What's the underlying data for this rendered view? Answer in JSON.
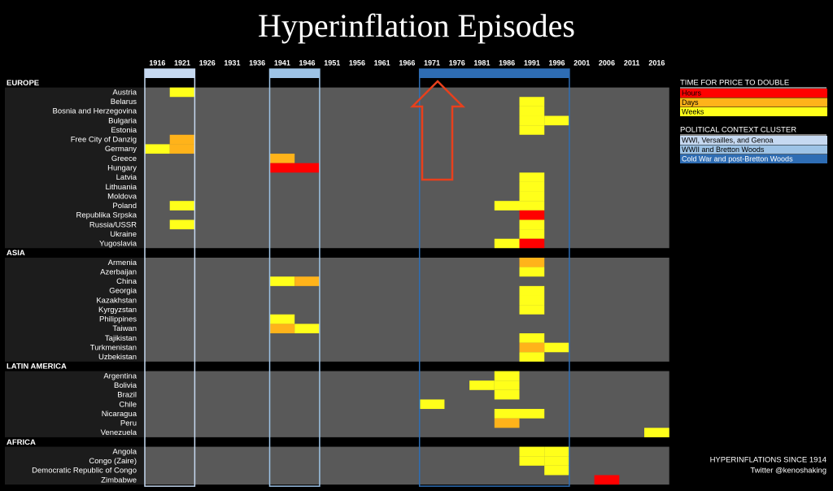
{
  "chart_data": {
    "type": "heatmap",
    "title": "Hyperinflation Episodes",
    "x": [
      "1916",
      "1921",
      "1926",
      "1931",
      "1936",
      "1941",
      "1946",
      "1951",
      "1956",
      "1961",
      "1966",
      "1971",
      "1976",
      "1981",
      "1986",
      "1991",
      "1996",
      "2001",
      "2006",
      "2011",
      "2016"
    ],
    "speed_title": "TIME FOR PRICE TO DOUBLE",
    "speeds": [
      {
        "name": "Hours",
        "color": "#ff0000"
      },
      {
        "name": "Days",
        "color": "#ffb31a"
      },
      {
        "name": "Weeks",
        "color": "#ffff1a"
      }
    ],
    "cluster_title": "POLITICAL CONTEXT CLUSTER",
    "clusters": [
      {
        "name": "WWI, Versailles, and Genoa",
        "color": "#c6d9f1",
        "from": "1916",
        "to": "1921"
      },
      {
        "name": "WWII and Bretton Woods",
        "color": "#9dc3e6",
        "from": "1941",
        "to": "1946"
      },
      {
        "name": "Cold War and post-Bretton Woods",
        "color": "#2e6db4",
        "from": "1971",
        "to": "1996"
      }
    ],
    "regions": [
      {
        "name": "EUROPE",
        "countries": [
          {
            "name": "Austria",
            "episodes": [
              {
                "year": "1921",
                "speed": "Weeks"
              }
            ]
          },
          {
            "name": "Belarus",
            "episodes": [
              {
                "year": "1991",
                "speed": "Weeks"
              }
            ]
          },
          {
            "name": "Bosnia and Herzegovina",
            "episodes": [
              {
                "year": "1991",
                "speed": "Weeks"
              }
            ]
          },
          {
            "name": "Bulgaria",
            "episodes": [
              {
                "year": "1991",
                "speed": "Weeks"
              },
              {
                "year": "1996",
                "speed": "Weeks"
              }
            ]
          },
          {
            "name": "Estonia",
            "episodes": [
              {
                "year": "1991",
                "speed": "Weeks"
              }
            ]
          },
          {
            "name": "Free City of Danzig",
            "episodes": [
              {
                "year": "1921",
                "speed": "Days"
              }
            ]
          },
          {
            "name": "Germany",
            "episodes": [
              {
                "year": "1916",
                "speed": "Weeks"
              },
              {
                "year": "1921",
                "speed": "Days"
              }
            ]
          },
          {
            "name": "Greece",
            "episodes": [
              {
                "year": "1941",
                "speed": "Days"
              }
            ]
          },
          {
            "name": "Hungary",
            "episodes": [
              {
                "year": "1941",
                "speed": "Hours"
              },
              {
                "year": "1946",
                "speed": "Hours"
              }
            ]
          },
          {
            "name": "Latvia",
            "episodes": [
              {
                "year": "1991",
                "speed": "Weeks"
              }
            ]
          },
          {
            "name": "Lithuania",
            "episodes": [
              {
                "year": "1991",
                "speed": "Weeks"
              }
            ]
          },
          {
            "name": "Moldova",
            "episodes": [
              {
                "year": "1991",
                "speed": "Weeks"
              }
            ]
          },
          {
            "name": "Poland",
            "episodes": [
              {
                "year": "1921",
                "speed": "Weeks"
              },
              {
                "year": "1986",
                "speed": "Weeks"
              },
              {
                "year": "1991",
                "speed": "Weeks"
              }
            ]
          },
          {
            "name": "Republika Srpska",
            "episodes": [
              {
                "year": "1991",
                "speed": "Hours"
              }
            ]
          },
          {
            "name": "Russia/USSR",
            "episodes": [
              {
                "year": "1921",
                "speed": "Weeks"
              },
              {
                "year": "1991",
                "speed": "Weeks"
              }
            ]
          },
          {
            "name": "Ukraine",
            "episodes": [
              {
                "year": "1991",
                "speed": "Weeks"
              }
            ]
          },
          {
            "name": "Yugoslavia",
            "episodes": [
              {
                "year": "1986",
                "speed": "Weeks"
              },
              {
                "year": "1991",
                "speed": "Hours"
              }
            ]
          }
        ]
      },
      {
        "name": "ASIA",
        "countries": [
          {
            "name": "Armenia",
            "episodes": [
              {
                "year": "1991",
                "speed": "Days"
              }
            ]
          },
          {
            "name": "Azerbaijan",
            "episodes": [
              {
                "year": "1991",
                "speed": "Weeks"
              }
            ]
          },
          {
            "name": "China",
            "episodes": [
              {
                "year": "1941",
                "speed": "Weeks"
              },
              {
                "year": "1946",
                "speed": "Days"
              }
            ]
          },
          {
            "name": "Georgia",
            "episodes": [
              {
                "year": "1991",
                "speed": "Weeks"
              }
            ]
          },
          {
            "name": "Kazakhstan",
            "episodes": [
              {
                "year": "1991",
                "speed": "Weeks"
              }
            ]
          },
          {
            "name": "Kyrgyzstan",
            "episodes": [
              {
                "year": "1991",
                "speed": "Weeks"
              }
            ]
          },
          {
            "name": "Philippines",
            "episodes": [
              {
                "year": "1941",
                "speed": "Weeks"
              }
            ]
          },
          {
            "name": "Taiwan",
            "episodes": [
              {
                "year": "1941",
                "speed": "Days"
              },
              {
                "year": "1946",
                "speed": "Weeks"
              }
            ]
          },
          {
            "name": "Tajikistan",
            "episodes": [
              {
                "year": "1991",
                "speed": "Weeks"
              }
            ]
          },
          {
            "name": "Turkmenistan",
            "episodes": [
              {
                "year": "1991",
                "speed": "Days"
              },
              {
                "year": "1996",
                "speed": "Weeks"
              }
            ]
          },
          {
            "name": "Uzbekistan",
            "episodes": [
              {
                "year": "1991",
                "speed": "Weeks"
              }
            ]
          }
        ]
      },
      {
        "name": "LATIN AMERICA",
        "countries": [
          {
            "name": "Argentina",
            "episodes": [
              {
                "year": "1986",
                "speed": "Weeks"
              }
            ]
          },
          {
            "name": "Bolivia",
            "episodes": [
              {
                "year": "1981",
                "speed": "Weeks"
              },
              {
                "year": "1986",
                "speed": "Weeks"
              }
            ]
          },
          {
            "name": "Brazil",
            "episodes": [
              {
                "year": "1986",
                "speed": "Weeks"
              }
            ]
          },
          {
            "name": "Chile",
            "episodes": [
              {
                "year": "1971",
                "speed": "Weeks"
              }
            ]
          },
          {
            "name": "Nicaragua",
            "episodes": [
              {
                "year": "1986",
                "speed": "Weeks"
              },
              {
                "year": "1991",
                "speed": "Weeks"
              }
            ]
          },
          {
            "name": "Peru",
            "episodes": [
              {
                "year": "1986",
                "speed": "Days"
              }
            ]
          },
          {
            "name": "Venezuela",
            "episodes": [
              {
                "year": "2016",
                "speed": "Weeks"
              }
            ]
          }
        ]
      },
      {
        "name": "AFRICA",
        "countries": [
          {
            "name": "Angola",
            "episodes": [
              {
                "year": "1991",
                "speed": "Weeks"
              },
              {
                "year": "1996",
                "speed": "Weeks"
              }
            ]
          },
          {
            "name": "Congo (Zaire)",
            "episodes": [
              {
                "year": "1991",
                "speed": "Weeks"
              },
              {
                "year": "1996",
                "speed": "Weeks"
              }
            ]
          },
          {
            "name": "Democratic Republic of Congo",
            "episodes": [
              {
                "year": "1996",
                "speed": "Weeks"
              }
            ]
          },
          {
            "name": "Zimbabwe",
            "episodes": [
              {
                "year": "2006",
                "speed": "Hours"
              }
            ]
          }
        ]
      }
    ],
    "footer": "HYPERINFLATIONS SINCE 1914",
    "credit": "Twitter @kenoshaking"
  }
}
